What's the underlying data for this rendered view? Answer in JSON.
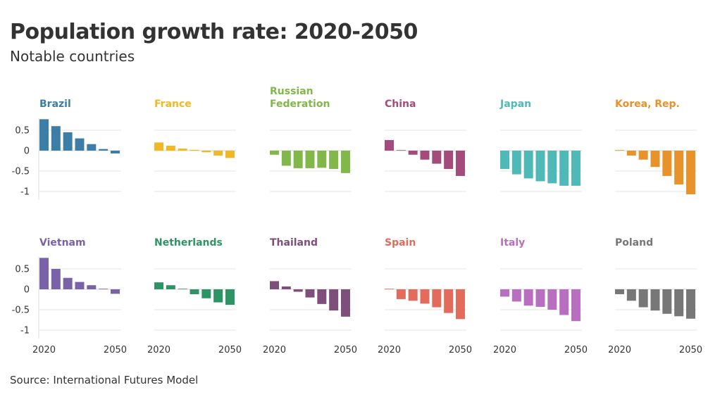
{
  "header": {
    "title": "Population growth rate: 2020-2050",
    "subtitle": "Notable countries"
  },
  "footer": {
    "source": "Source: International Futures Model"
  },
  "chart_data": {
    "type": "bar",
    "layout": "small-multiples",
    "categories": [
      "2020",
      "2025",
      "2030",
      "2035",
      "2040",
      "2045",
      "2050"
    ],
    "x_tick_labels": [
      "2020",
      "2050"
    ],
    "ylim": [
      -1.2,
      0.8
    ],
    "y_ticks": [
      0.5,
      0,
      -0.5,
      -1
    ],
    "y_tick_labels": [
      "0.5",
      "0",
      "-0.5",
      "-1"
    ],
    "grid": true,
    "series": [
      {
        "name": "Brazil",
        "color": "#3d7ea6",
        "values": [
          0.77,
          0.6,
          0.45,
          0.3,
          0.16,
          0.04,
          -0.07
        ]
      },
      {
        "name": "France",
        "color": "#efb925",
        "values": [
          0.2,
          0.12,
          0.05,
          0.02,
          -0.04,
          -0.12,
          -0.18
        ]
      },
      {
        "name": "Russian\nFederation",
        "color": "#82b84a",
        "values": [
          -0.1,
          -0.37,
          -0.43,
          -0.43,
          -0.42,
          -0.45,
          -0.55
        ]
      },
      {
        "name": "China",
        "color": "#a34c7b",
        "values": [
          0.26,
          0.01,
          -0.1,
          -0.22,
          -0.32,
          -0.45,
          -0.62
        ]
      },
      {
        "name": "Japan",
        "color": "#4fb9b8",
        "values": [
          -0.45,
          -0.58,
          -0.68,
          -0.75,
          -0.8,
          -0.86,
          -0.86
        ]
      },
      {
        "name": "Korea, Rep.",
        "color": "#e8922a",
        "values": [
          0.01,
          -0.12,
          -0.22,
          -0.4,
          -0.62,
          -0.83,
          -1.07
        ]
      },
      {
        "name": "Vietnam",
        "color": "#7a62a8",
        "values": [
          0.77,
          0.5,
          0.28,
          0.18,
          0.1,
          0.0,
          -0.11
        ]
      },
      {
        "name": "Netherlands",
        "color": "#2e9465",
        "values": [
          0.17,
          0.1,
          0.0,
          -0.12,
          -0.22,
          -0.32,
          -0.38
        ]
      },
      {
        "name": "Thailand",
        "color": "#7e4f7b",
        "values": [
          0.2,
          0.07,
          -0.06,
          -0.2,
          -0.36,
          -0.52,
          -0.67
        ]
      },
      {
        "name": "Spain",
        "color": "#e26b5b",
        "values": [
          0.0,
          -0.24,
          -0.28,
          -0.35,
          -0.44,
          -0.58,
          -0.73
        ]
      },
      {
        "name": "Italy",
        "color": "#b96fc0",
        "values": [
          -0.18,
          -0.3,
          -0.4,
          -0.43,
          -0.5,
          -0.63,
          -0.78
        ]
      },
      {
        "name": "Poland",
        "color": "#777777",
        "values": [
          -0.12,
          -0.28,
          -0.44,
          -0.52,
          -0.6,
          -0.66,
          -0.72
        ]
      }
    ]
  }
}
